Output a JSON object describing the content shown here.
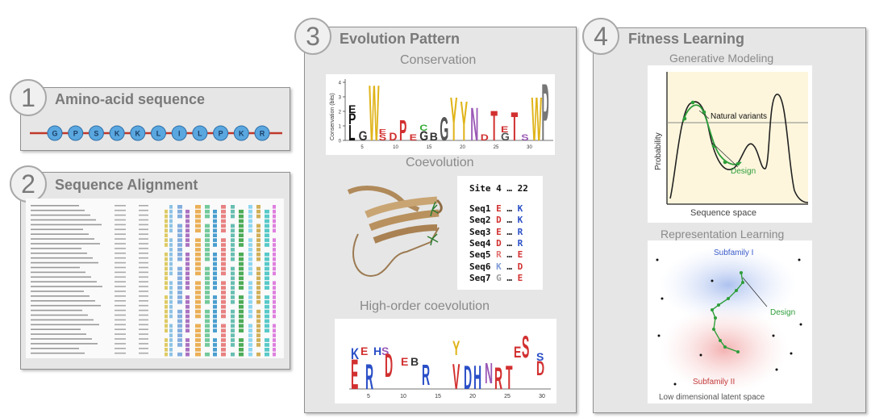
{
  "panel1": {
    "number": "1",
    "title": "Amino-acid sequence",
    "residues": [
      "G",
      "P",
      "S",
      "K",
      "K",
      "L",
      "I",
      "L",
      "P",
      "K",
      "R"
    ]
  },
  "panel2": {
    "number": "2",
    "title": "Sequence Alignment"
  },
  "panel3": {
    "number": "3",
    "title": "Evolution Pattern",
    "conservation": {
      "title": "Conservation",
      "ylabel": "Conservation (bits)",
      "yticks": [
        "0",
        "1",
        "2",
        "3",
        "4"
      ],
      "xticks": [
        "5",
        "10",
        "15",
        "20",
        "25",
        "30"
      ]
    },
    "coevolution": {
      "title": "Coevolution",
      "header": "Site 4 … 22",
      "rows": [
        {
          "seq": "Seq1",
          "a": "E",
          "b": "K",
          "ca": "#d23030",
          "cb": "#2a4fc7"
        },
        {
          "seq": "Seq2",
          "a": "D",
          "b": "K",
          "ca": "#d23030",
          "cb": "#2a4fc7"
        },
        {
          "seq": "Seq3",
          "a": "E",
          "b": "R",
          "ca": "#d23030",
          "cb": "#2a4fc7"
        },
        {
          "seq": "Seq4",
          "a": "D",
          "b": "R",
          "ca": "#d23030",
          "cb": "#2a4fc7"
        },
        {
          "seq": "Seq5",
          "a": "R",
          "b": "E",
          "ca": "#e07070",
          "cb": "#d23030"
        },
        {
          "seq": "Seq6",
          "a": "K",
          "b": "D",
          "ca": "#7f9ad6",
          "cb": "#d23030"
        },
        {
          "seq": "Seq7",
          "a": "G",
          "b": "E",
          "ca": "#9a9a9a",
          "cb": "#d23030"
        }
      ],
      "ellipsis": "…"
    },
    "high_order": {
      "title": "High-order coevolution",
      "xticks": [
        "5",
        "10",
        "15",
        "20",
        "25",
        "30"
      ]
    }
  },
  "panel4": {
    "number": "4",
    "title": "Fitness Learning",
    "generative": {
      "title": "Generative Modeling",
      "ylabel": "Probability",
      "xlabel": "Sequence space",
      "natural_label": "Natural variants",
      "design_label": "Design"
    },
    "representation": {
      "title": "Representation Learning",
      "subfamily1": "Subfamily I",
      "subfamily2": "Subfamily II",
      "design_label": "Design",
      "footer": "Low dimensional latent space"
    }
  },
  "colors": {
    "panel_bg": "#e6e6e6",
    "residue_fill": "#5aa7e0",
    "backbone": "#c0392b",
    "design_green": "#2e9e3a",
    "red_aa": "#d23030",
    "blue_aa": "#2a4fc7"
  }
}
